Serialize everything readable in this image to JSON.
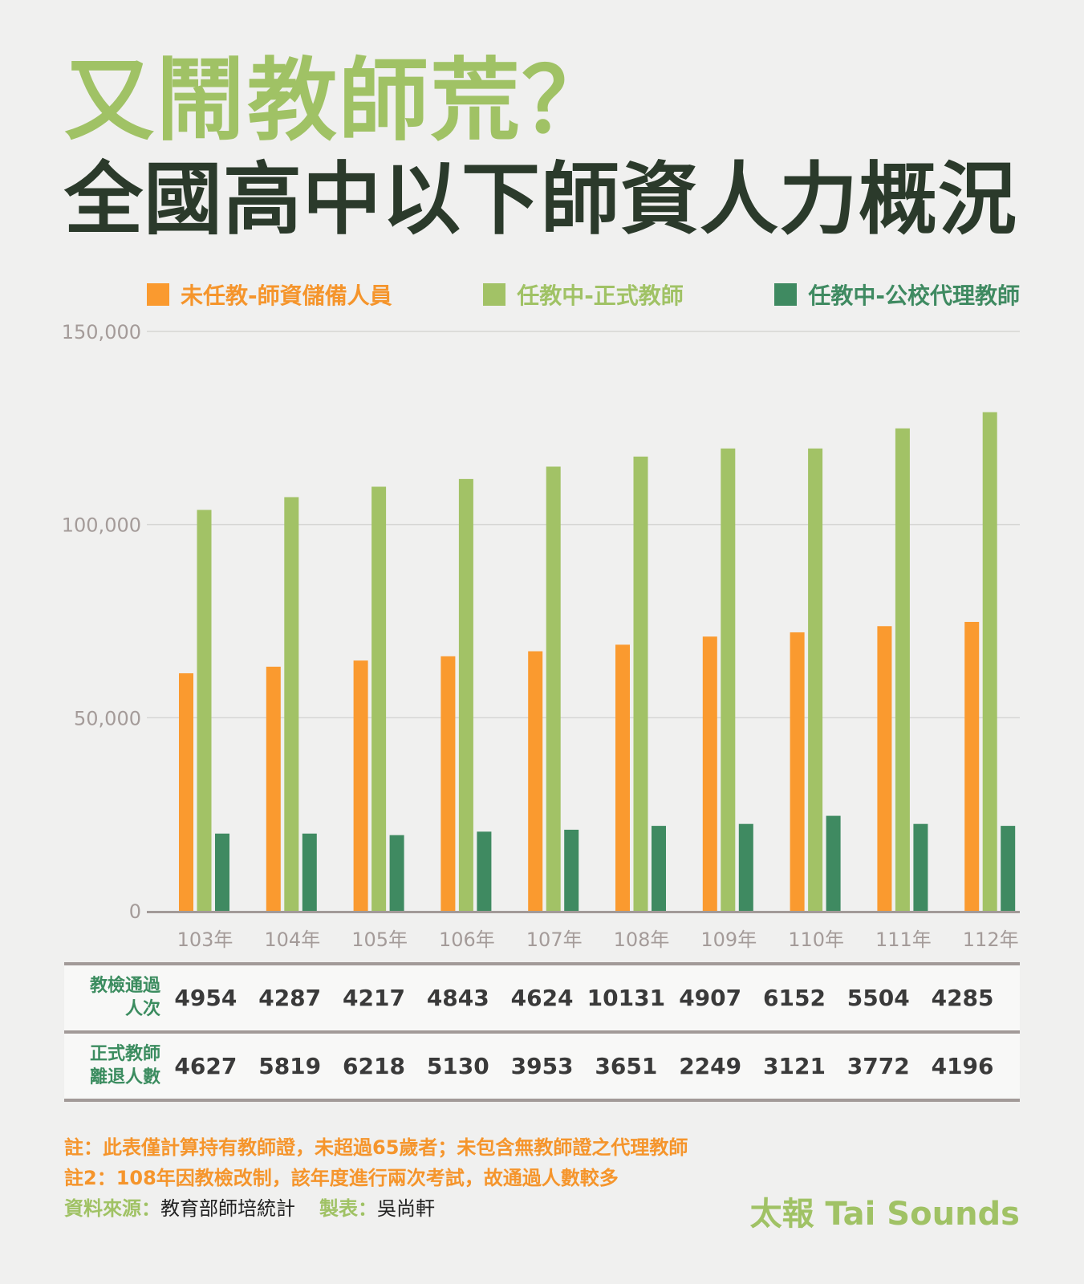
{
  "header": {
    "title": "又鬧教師荒？",
    "subtitle": "全國高中以下師資人力概況"
  },
  "colors": {
    "orange": "#fa9a2f",
    "light_green": "#a2c266",
    "dark_green": "#3f8a61",
    "title_green": "#a0c265",
    "title_dark": "#2b3a2b"
  },
  "chart_data": {
    "type": "bar",
    "categories": [
      "103年",
      "104年",
      "105年",
      "106年",
      "107年",
      "108年",
      "109年",
      "110年",
      "111年",
      "112年"
    ],
    "series": [
      {
        "name": "未任教-師資儲備人員",
        "color": "#fa9a2f",
        "values": [
          61500,
          63200,
          64800,
          65900,
          67200,
          68900,
          71000,
          72100,
          73700,
          74800
        ]
      },
      {
        "name": "任教中-正式教師",
        "color": "#a2c266",
        "values": [
          103800,
          107100,
          109800,
          111800,
          115000,
          117600,
          119700,
          119700,
          124900,
          129100
        ]
      },
      {
        "name": "任教中-公校代理教師",
        "color": "#3f8a61",
        "values": [
          20000,
          20000,
          19600,
          20500,
          21000,
          22000,
          22500,
          24600,
          22500,
          22000
        ]
      }
    ],
    "ylim": [
      0,
      150000
    ],
    "yticks": [
      "0",
      "50,000",
      "100,000",
      "150,000"
    ],
    "ytick_values": [
      0,
      50000,
      100000,
      150000
    ],
    "grid": true,
    "legend_position": "top"
  },
  "table": {
    "rows": [
      {
        "label_line1": "教檢通過",
        "label_line2": "人次",
        "values": [
          "4954",
          "4287",
          "4217",
          "4843",
          "4624",
          "10131",
          "4907",
          "6152",
          "5504",
          "4285"
        ]
      },
      {
        "label_line1": "正式教師",
        "label_line2": "離退人數",
        "values": [
          "4627",
          "5819",
          "6218",
          "5130",
          "3953",
          "3651",
          "2249",
          "3121",
          "3772",
          "4196"
        ]
      }
    ]
  },
  "notes": {
    "note1": "註：此表僅計算持有教師證，未超過65歲者；未包含無教師證之代理教師",
    "note2": "註2：108年因教檢改制，該年度進行兩次考試，故通過人數較多",
    "source_label": "資料來源：",
    "source_value": "教育部師培統計",
    "maker_label": "製表：",
    "maker_value": "吳尚軒"
  },
  "brand": "太報 Tai Sounds"
}
